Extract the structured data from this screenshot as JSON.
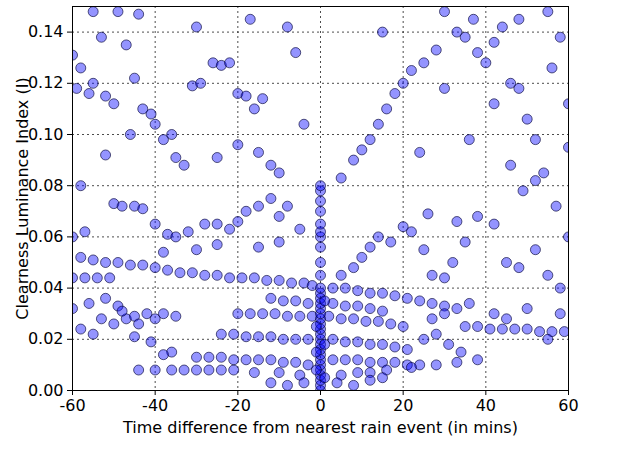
{
  "chart_data": {
    "type": "scatter",
    "x_label": "Time difference from nearest rain event (in mins)",
    "y_label": "Clearness Luminance Index (I)",
    "color": "#0000ff",
    "marker": "circle",
    "grid": true,
    "xlim": [
      -60,
      60
    ],
    "xticks": [
      -60,
      -40,
      -20,
      0,
      20,
      40,
      60
    ],
    "ylim": [
      0,
      0.15
    ],
    "yticks": [
      {
        "value": 0,
        "label": "0.00"
      },
      0.02,
      0.04,
      0.06,
      0.08,
      {
        "value": 0.1,
        "label": "0.10"
      },
      0.12,
      0.14
    ],
    "x": [
      -58,
      -55,
      -52,
      -49,
      -46,
      -43,
      -40,
      -37,
      -34,
      -31,
      -28,
      -25,
      -22,
      -19,
      -16,
      -13,
      -10,
      -7,
      -4,
      -2,
      3,
      6,
      9,
      12,
      15,
      18,
      21,
      24,
      27,
      30,
      33,
      -60,
      -57,
      -54,
      -51,
      35,
      38,
      41,
      44,
      47,
      50,
      53,
      56,
      59,
      -12,
      -9,
      -6,
      -3,
      3,
      6,
      9,
      12,
      15,
      -20,
      -17,
      -14,
      -11,
      -8,
      -5,
      -2,
      2,
      5,
      8,
      11,
      14,
      17,
      20,
      -24,
      -21,
      -18,
      -15,
      -12,
      -9,
      -6,
      -3,
      3,
      6,
      9,
      12,
      15,
      18,
      21,
      -30,
      -27,
      -24,
      -21,
      -18,
      -15,
      -12,
      -9,
      -6,
      -3,
      3,
      6,
      9,
      12,
      15,
      18,
      21,
      24,
      -44,
      -40,
      -36,
      -33,
      -30,
      -27,
      -24,
      -21,
      -16,
      -10,
      -5,
      5,
      9,
      12,
      16,
      22,
      28,
      33,
      -8,
      -4,
      4,
      8,
      12,
      15,
      -12,
      -60,
      -56,
      -52,
      -49,
      -47,
      -45,
      -42,
      -40,
      -38,
      -35,
      -50,
      -53,
      -58,
      -55,
      -45,
      -41,
      -36,
      -38,
      -48,
      -44,
      -60,
      -57,
      -50,
      -48,
      -45,
      -43,
      -40,
      -37,
      -35,
      -32,
      -28,
      -25,
      -22,
      -20,
      -18,
      -15,
      -12,
      -10,
      -8,
      -5,
      -30,
      -25,
      -15,
      -10,
      -38,
      -60,
      -59,
      -58,
      -56,
      -55,
      -53,
      -52,
      -50,
      -49,
      -47,
      -46,
      -45,
      -43,
      -41,
      -40,
      -38,
      -36,
      -35,
      -33,
      -31,
      -29,
      -26,
      -24,
      -22,
      -20,
      -18,
      -16,
      -14,
      -12,
      -10,
      -8,
      -6,
      -4,
      -25,
      -20,
      -15,
      -55,
      -44,
      -30,
      -17,
      -52,
      -58,
      5,
      8,
      10,
      12,
      14,
      17,
      20,
      22,
      25,
      27,
      30,
      32,
      35,
      38,
      42,
      45,
      48,
      52,
      55,
      58,
      60,
      26,
      33,
      5,
      8,
      10,
      12,
      14,
      16,
      18,
      20,
      22,
      25,
      28,
      33,
      35,
      37,
      38,
      40,
      42,
      44,
      46,
      48,
      50,
      52,
      54,
      56,
      58,
      60,
      46,
      49,
      52,
      57,
      30,
      24,
      36,
      42,
      55,
      48,
      30,
      15,
      60,
      25,
      28,
      31,
      34,
      38,
      42,
      45,
      50,
      55,
      58,
      27,
      30,
      36,
      0,
      0,
      0,
      0,
      0,
      0,
      0,
      0,
      0,
      0,
      0,
      0,
      0,
      0,
      0,
      0,
      0,
      0,
      0,
      0,
      0,
      0,
      0,
      0,
      0,
      0,
      0,
      0,
      0,
      0,
      0,
      -1,
      1,
      -1,
      1,
      1,
      -1
    ],
    "values": [
      0.052,
      0.051,
      0.05,
      0.05,
      0.049,
      0.049,
      0.048,
      0.047,
      0.046,
      0.046,
      0.045,
      0.045,
      0.044,
      0.044,
      0.044,
      0.043,
      0.043,
      0.042,
      0.042,
      0.041,
      0.04,
      0.04,
      0.039,
      0.038,
      0.038,
      0.037,
      0.036,
      0.035,
      0.034,
      0.033,
      0.032,
      0.044,
      0.044,
      0.044,
      0.044,
      0.025,
      0.025,
      0.024,
      0.024,
      0.024,
      0.024,
      0.023,
      0.023,
      0.023,
      0.036,
      0.035,
      0.035,
      0.034,
      0.034,
      0.033,
      0.033,
      0.032,
      0.031,
      0.03,
      0.03,
      0.03,
      0.03,
      0.029,
      0.029,
      0.029,
      0.029,
      0.028,
      0.028,
      0.027,
      0.027,
      0.026,
      0.025,
      0.022,
      0.022,
      0.021,
      0.021,
      0.021,
      0.02,
      0.02,
      0.02,
      0.02,
      0.019,
      0.019,
      0.018,
      0.018,
      0.017,
      0.016,
      0.013,
      0.013,
      0.013,
      0.012,
      0.012,
      0.012,
      0.012,
      0.011,
      0.011,
      0.01,
      0.012,
      0.012,
      0.012,
      0.011,
      0.011,
      0.011,
      0.01,
      0.01,
      0.008,
      0.008,
      0.008,
      0.008,
      0.008,
      0.008,
      0.008,
      0.008,
      0.007,
      0.007,
      0.006,
      0.006,
      0.007,
      0.007,
      0.008,
      0.009,
      0.01,
      0.011,
      0.002,
      0.003,
      0.003,
      0.002,
      0.004,
      0.005,
      0.003,
      0.032,
      0.034,
      0.036,
      0.033,
      0.028,
      0.029,
      0.03,
      0.028,
      0.03,
      0.029,
      0.026,
      0.028,
      0.024,
      0.022,
      0.021,
      0.019,
      0.015,
      0.014,
      0.031,
      0.026,
      0.06,
      0.062,
      0.073,
      0.072,
      0.072,
      0.071,
      0.065,
      0.061,
      0.06,
      0.062,
      0.065,
      0.065,
      0.063,
      0.066,
      0.07,
      0.072,
      0.075,
      0.068,
      0.072,
      0.063,
      0.055,
      0.057,
      0.056,
      0.058,
      0.054,
      0.131,
      0.118,
      0.126,
      0.116,
      0.12,
      0.138,
      0.115,
      0.112,
      0.148,
      0.135,
      0.1,
      0.122,
      0.11,
      0.108,
      0.104,
      0.098,
      0.1,
      0.091,
      0.088,
      0.119,
      0.12,
      0.128,
      0.127,
      0.128,
      0.116,
      0.115,
      0.11,
      0.114,
      0.088,
      0.085,
      0.142,
      0.132,
      0.104,
      0.091,
      0.096,
      0.093,
      0.148,
      0.147,
      0.142,
      0.145,
      0.092,
      0.08,
      0.045,
      0.048,
      0.052,
      0.056,
      0.06,
      0.058,
      0.064,
      0.062,
      0.055,
      0.045,
      0.044,
      0.05,
      0.058,
      0.068,
      0.065,
      0.05,
      0.048,
      0.055,
      0.045,
      0.04,
      0.06,
      0.069,
      0.066,
      0.083,
      0.09,
      0.094,
      0.098,
      0.104,
      0.11,
      0.116,
      0.12,
      0.125,
      0.128,
      0.133,
      0.14,
      0.138,
      0.145,
      0.132,
      0.128,
      0.136,
      0.142,
      0.12,
      0.118,
      0.106,
      0.098,
      0.085,
      0.126,
      0.138,
      0.112,
      0.088,
      0.078,
      0.082,
      0.072,
      0.118,
      0.093,
      0.098,
      0.112,
      0.148,
      0.145,
      0.148,
      0.14,
      0.095,
      0.02,
      0.022,
      0.018,
      0.015,
      0.012,
      0.03,
      0.028,
      0.032,
      0.02,
      0.03,
      0.028,
      0.03,
      0.034,
      0,
      0.002,
      0.004,
      0.006,
      0.008,
      0.01,
      0.012,
      0.014,
      0.016,
      0.018,
      0.02,
      0.022,
      0.024,
      0.026,
      0.028,
      0.03,
      0.032,
      0.034,
      0.036,
      0.038,
      0.04,
      0.045,
      0.05,
      0.056,
      0.06,
      0.062,
      0.065,
      0.07,
      0.074,
      0.078,
      0.08,
      0.015,
      0.018,
      0.025,
      0.035,
      0.005,
      0.008
    ]
  }
}
